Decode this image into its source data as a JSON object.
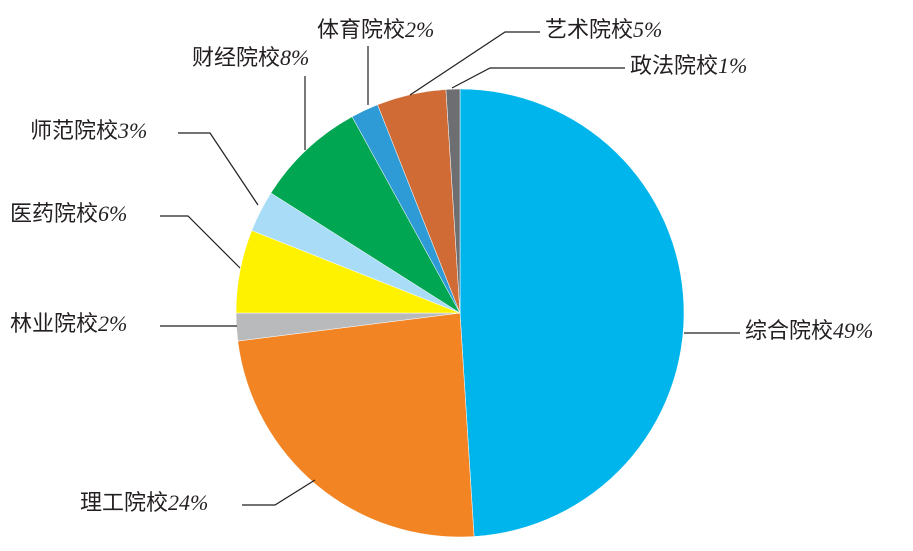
{
  "chart_data": {
    "type": "pie",
    "categories": [
      "综合院校",
      "理工院校",
      "林业院校",
      "医药院校",
      "师范院校",
      "财经院校",
      "体育院校",
      "艺术院校",
      "政法院校"
    ],
    "values": [
      49,
      24,
      2,
      6,
      3,
      8,
      2,
      5,
      1
    ],
    "value_labels": [
      "49%",
      "24%",
      "2%",
      "6%",
      "3%",
      "8%",
      "2%",
      "5%",
      "1%"
    ],
    "colors": [
      "#00b5ec",
      "#f28424",
      "#b9babc",
      "#fff200",
      "#a9ddf7",
      "#00a651",
      "#2f9bd6",
      "#d06b35",
      "#6d6e71"
    ]
  }
}
